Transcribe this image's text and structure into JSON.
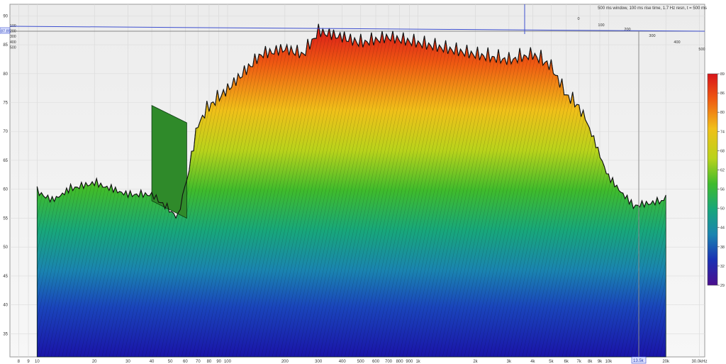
{
  "chart_data": {
    "type": "area",
    "title": "500 ms window, 100 ms rise time, 1.7 Hz resn, t = 500 ms",
    "x_axis": {
      "scale": "log",
      "ticks": [
        "8",
        "9",
        "10",
        "20",
        "30",
        "40",
        "50",
        "60",
        "70",
        "80",
        "90",
        "100",
        "200",
        "300",
        "400",
        "500",
        "600",
        "700",
        "800",
        "900",
        "1k",
        "2k",
        "3k",
        "4k",
        "5k",
        "6k",
        "7k",
        "8k",
        "9k",
        "10k",
        "20k",
        "30.0kHz"
      ],
      "cursor_label": "13.5k"
    },
    "y_axis": {
      "unit": "dB",
      "ticks": [
        "35",
        "40",
        "45",
        "50",
        "55",
        "60",
        "65",
        "70",
        "75",
        "80",
        "85",
        "90"
      ],
      "cursor_label": "87.85",
      "range": [
        31,
        92
      ]
    },
    "time_axis": {
      "unit": "ms",
      "ticks": [
        "0",
        "100",
        "200",
        "300",
        "400",
        "500"
      ],
      "corner_labels": [
        "100",
        "200",
        "300",
        "400",
        "500"
      ]
    },
    "colorbar": {
      "ticks": [
        "89",
        "86",
        "80",
        "74",
        "68",
        "62",
        "56",
        "50",
        "44",
        "38",
        "32",
        "29"
      ],
      "colors": [
        "#d8141a",
        "#ef4a12",
        "#f39a1b",
        "#e6d31b",
        "#a9d21c",
        "#4fbf2a",
        "#1aa86a",
        "#1a8ea6",
        "#1a5fb8",
        "#1a2fb3",
        "#2a12a0",
        "#4a0f8e"
      ]
    },
    "series": [
      {
        "x": [
          10,
          12,
          15,
          20,
          30,
          40,
          55,
          70,
          80,
          100,
          150,
          200,
          250,
          300,
          400,
          500,
          700,
          1000,
          2000,
          3000,
          4000,
          5000,
          6000,
          7000,
          10000,
          13500,
          20000
        ],
        "y": [
          60.5,
          59,
          61,
          62,
          60,
          60,
          56,
          73,
          76,
          79,
          85,
          86,
          85,
          89,
          88,
          87,
          88,
          87,
          85,
          84,
          85,
          83,
          78,
          76,
          63,
          58,
          59
        ]
      }
    ]
  }
}
